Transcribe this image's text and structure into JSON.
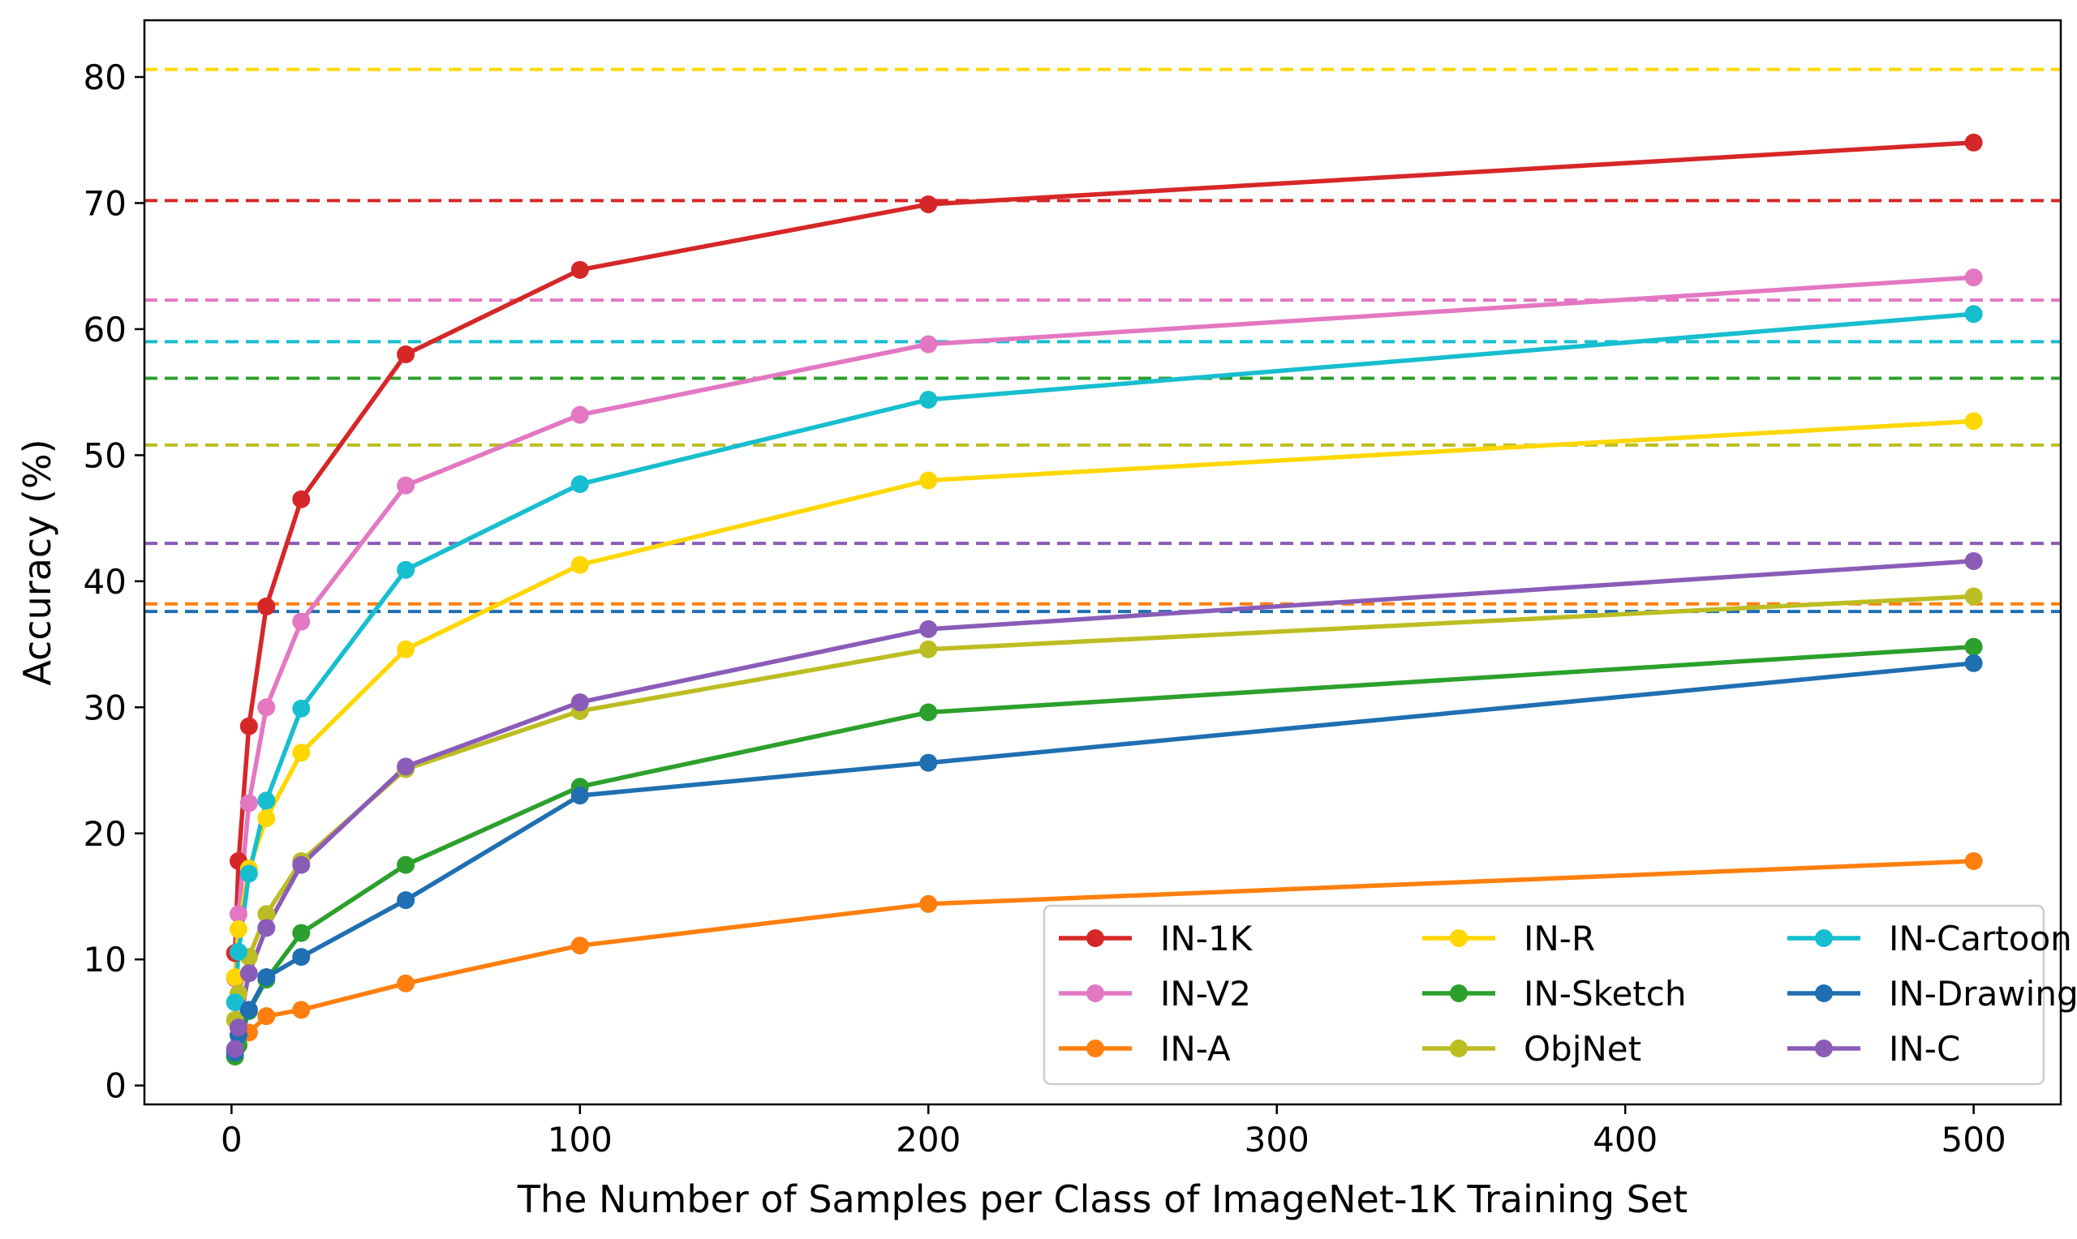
{
  "chart_data": {
    "type": "line",
    "xlabel": "The Number of Samples per Class of ImageNet-1K Training Set",
    "ylabel": "Accuracy (%)",
    "xlim": [
      -25,
      525
    ],
    "ylim": [
      -1.5,
      84.5
    ],
    "xticks": [
      0,
      100,
      200,
      300,
      400,
      500
    ],
    "yticks": [
      0,
      10,
      20,
      30,
      40,
      50,
      60,
      70,
      80
    ],
    "grid": false,
    "legend": {
      "placement": "lower-right",
      "columns": 3
    },
    "x": [
      1,
      2,
      5,
      10,
      20,
      50,
      100,
      200,
      500
    ],
    "series": [
      {
        "name": "IN-1K",
        "color": "#d62728",
        "values": [
          10.5,
          17.8,
          28.5,
          38.0,
          46.5,
          58.0,
          64.7,
          69.9,
          74.8
        ],
        "baseline": 70.2
      },
      {
        "name": "IN-V2",
        "color": "#e377c2",
        "values": [
          8.5,
          13.6,
          22.4,
          30.0,
          36.8,
          47.6,
          53.2,
          58.8,
          64.1
        ],
        "baseline": 62.3
      },
      {
        "name": "IN-A",
        "color": "#ff7f0e",
        "values": [
          2.3,
          3.2,
          4.2,
          5.5,
          6.0,
          8.1,
          11.1,
          14.4,
          17.8
        ],
        "baseline": 38.2
      },
      {
        "name": "IN-R",
        "color": "#ffd700",
        "values": [
          8.6,
          12.4,
          17.2,
          21.2,
          26.4,
          34.6,
          41.3,
          48.0,
          52.7
        ],
        "baseline": 80.6
      },
      {
        "name": "IN-Sketch",
        "color": "#2ca02c",
        "values": [
          2.3,
          3.2,
          5.9,
          8.4,
          12.1,
          17.5,
          23.7,
          29.6,
          34.8
        ],
        "baseline": 56.1
      },
      {
        "name": "ObjNet",
        "color": "#bcbd22",
        "values": [
          5.2,
          7.3,
          10.2,
          13.6,
          17.8,
          25.1,
          29.7,
          34.6,
          38.8
        ],
        "baseline": 50.8
      },
      {
        "name": "IN-Cartoon",
        "color": "#17becf",
        "values": [
          6.6,
          10.6,
          16.8,
          22.6,
          29.9,
          40.9,
          47.7,
          54.4,
          61.2
        ],
        "baseline": 59.0
      },
      {
        "name": "IN-Drawing",
        "color": "#1f6fb2",
        "values": [
          2.6,
          4.0,
          6.0,
          8.6,
          10.2,
          14.7,
          23.0,
          25.6,
          33.5
        ],
        "baseline": 37.6
      },
      {
        "name": "IN-C",
        "color": "#8a5cb8",
        "values": [
          2.9,
          4.6,
          8.9,
          12.5,
          17.5,
          25.3,
          30.4,
          36.2,
          41.6
        ],
        "baseline": 43.0
      }
    ]
  }
}
